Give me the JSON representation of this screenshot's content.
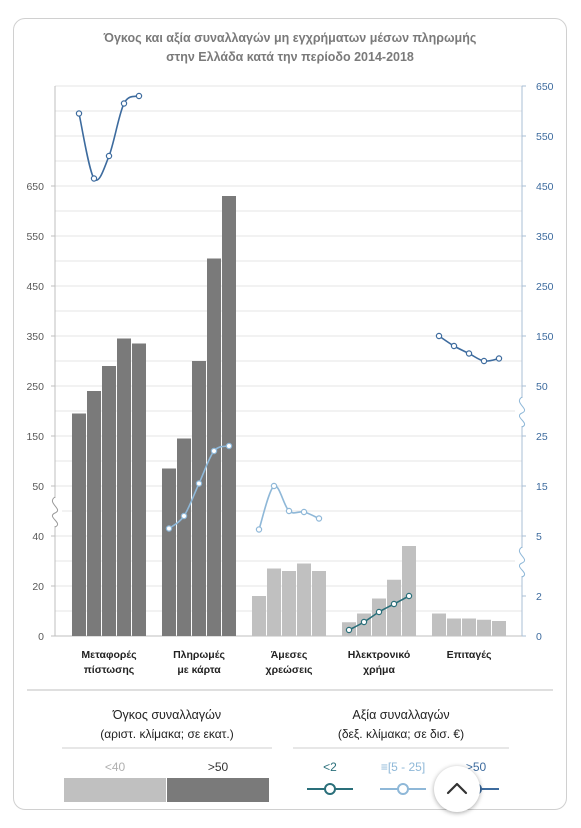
{
  "chart_data": {
    "type": "bar",
    "title_lines": [
      "Όγκος και αξία συναλλαγών μη εγχρήματων  μέσων πληρωμής",
      "στην Ελλάδα κατά την περίοδο 2014-2018"
    ],
    "categories": [
      {
        "lines": [
          "Μεταφορές",
          "πίστωσης"
        ]
      },
      {
        "lines": [
          "Πληρωμές",
          "με κάρτα"
        ]
      },
      {
        "lines": [
          "Άμεσες",
          "χρεώσεις"
        ]
      },
      {
        "lines": [
          "Ηλεκτρονικό",
          "χρήμα"
        ]
      },
      {
        "lines": [
          "Επιταγές"
        ]
      }
    ],
    "left_axis": {
      "scale": "broken",
      "segments": [
        {
          "from": 0,
          "to": 40,
          "ticks": [
            0,
            20,
            40
          ]
        },
        {
          "from": 50,
          "to": 650,
          "ticks": [
            50,
            150,
            250,
            350,
            450,
            550,
            650
          ]
        }
      ]
    },
    "right_axis": {
      "scale": "broken",
      "segments": [
        {
          "from": 0,
          "to": 5,
          "ticks": [
            0,
            2,
            5
          ]
        },
        {
          "from": 5,
          "to": 25,
          "ticks": [
            15,
            25
          ]
        },
        {
          "from": 50,
          "to": 650,
          "ticks": [
            50,
            150,
            250,
            350,
            450,
            550,
            650
          ]
        }
      ]
    },
    "volume_series": [
      {
        "category": "Μεταφορές πίστωσης",
        "group": ">50",
        "values": [
          195,
          240,
          290,
          345,
          335
        ]
      },
      {
        "category": "Πληρωμές με κάρτα",
        "group": ">50",
        "values": [
          85,
          145,
          300,
          505,
          630
        ]
      },
      {
        "category": "Άμεσες χρεώσεις",
        "group": "<40",
        "values": [
          16,
          27,
          26,
          29,
          26
        ]
      },
      {
        "category": "Ηλεκτρονικό χρήμα",
        "group": "<40",
        "values": [
          5.5,
          9,
          15,
          22.5,
          36
        ]
      },
      {
        "category": "Επιταγές",
        "group": "<40",
        "values": [
          9,
          7,
          7,
          6.5,
          6
        ]
      }
    ],
    "value_series": [
      {
        "category": "Μεταφορές πίστωσης",
        "group": ">50",
        "values": [
          595,
          465,
          510,
          615,
          630
        ]
      },
      {
        "category": "Πληρωμές με κάρτα",
        "group": "≡[5 - 25]",
        "values": [
          6.5,
          9,
          15.5,
          22,
          23
        ]
      },
      {
        "category": "Άμεσες χρεώσεις",
        "group": "≡[5 - 25]",
        "values": [
          6.3,
          15,
          10,
          9.8,
          8.5
        ]
      },
      {
        "category": "Ηλεκτρονικό χρήμα",
        "group": "<2",
        "values": [
          0.3,
          0.7,
          1.2,
          1.6,
          2.0
        ]
      },
      {
        "category": "Επιταγές",
        "group": ">50",
        "values": [
          150,
          130,
          115,
          100,
          105
        ]
      }
    ],
    "legend": {
      "volume": {
        "title": "Όγκος συναλλαγών",
        "subtitle": "(αριστ. κλίμακα; σε εκατ.)",
        "items": [
          {
            "label": "<40",
            "color": "#c0c0c0"
          },
          {
            "label": ">50",
            "color": "#7a7a7a"
          }
        ]
      },
      "value": {
        "title": "Αξία συναλλαγών",
        "subtitle": "(δεξ. κλίμακα; σε δισ. €)",
        "items": [
          {
            "label": "<2",
            "color": "#2a6f7a"
          },
          {
            "label": "≡[5 - 25]",
            "color": "#8fb8d8"
          },
          {
            "label": ">50",
            "color": "#3d6b9e"
          }
        ]
      }
    },
    "colors": {
      "bar_large": "#7a7a7a",
      "bar_small": "#c0c0c0",
      "line_large": "#3d6b9e",
      "line_mid": "#8fb8d8",
      "line_small": "#2a6f7a",
      "left_axis_text": "#595959",
      "right_axis_text": "#3d6b9e"
    }
  }
}
